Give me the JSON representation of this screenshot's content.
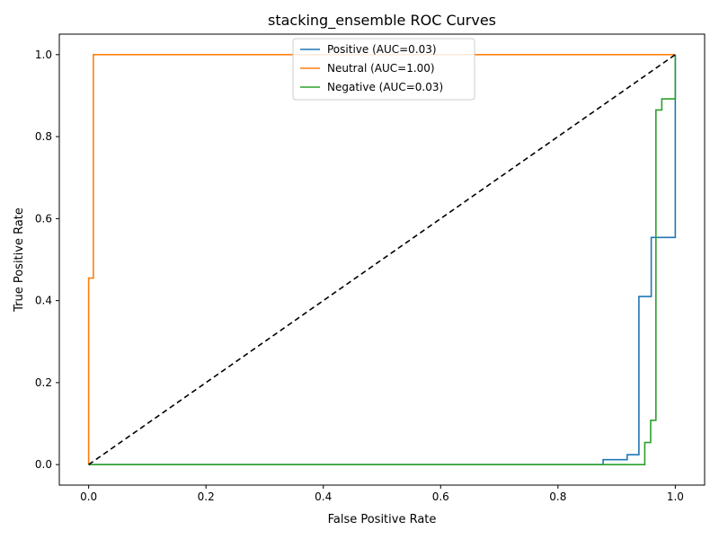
{
  "chart_data": {
    "type": "line",
    "title": "stacking_ensemble ROC Curves",
    "xlabel": "False Positive Rate",
    "ylabel": "True Positive Rate",
    "xlim": [
      -0.05,
      1.05
    ],
    "ylim": [
      -0.05,
      1.05
    ],
    "xticks": [
      0.0,
      0.2,
      0.4,
      0.6,
      0.8,
      1.0
    ],
    "yticks": [
      0.0,
      0.2,
      0.4,
      0.6,
      0.8,
      1.0
    ],
    "xtick_labels": [
      "0.0",
      "0.2",
      "0.4",
      "0.6",
      "0.8",
      "1.0"
    ],
    "ytick_labels": [
      "0.0",
      "0.2",
      "0.4",
      "0.6",
      "0.8",
      "1.0"
    ],
    "grid": false,
    "legend_position": "top-center",
    "series": [
      {
        "name": "Positive (AUC=0.03)",
        "color": "#1f77b4",
        "x": [
          0.0,
          0.877,
          0.877,
          0.918,
          0.918,
          0.938,
          0.938,
          0.959,
          0.959,
          1.0,
          1.0
        ],
        "y": [
          0.0,
          0.0,
          0.012,
          0.012,
          0.024,
          0.024,
          0.41,
          0.41,
          0.554,
          0.554,
          1.0
        ]
      },
      {
        "name": "Neutral (AUC=1.00)",
        "color": "#ff7f0e",
        "x": [
          0.0,
          0.0,
          0.008,
          0.008,
          1.0
        ],
        "y": [
          0.0,
          0.455,
          0.455,
          1.0,
          1.0
        ]
      },
      {
        "name": "Negative (AUC=0.03)",
        "color": "#2ca02c",
        "x": [
          0.0,
          0.948,
          0.948,
          0.958,
          0.958,
          0.967,
          0.967,
          0.977,
          0.977,
          0.986,
          0.986,
          1.0,
          1.0
        ],
        "y": [
          0.0,
          0.0,
          0.054,
          0.054,
          0.108,
          0.108,
          0.865,
          0.865,
          0.892,
          0.892,
          0.892,
          0.892,
          1.0
        ]
      }
    ],
    "reference_line": {
      "style": "dashed",
      "color": "#000000",
      "x": [
        0.0,
        1.0
      ],
      "y": [
        0.0,
        1.0
      ]
    }
  }
}
